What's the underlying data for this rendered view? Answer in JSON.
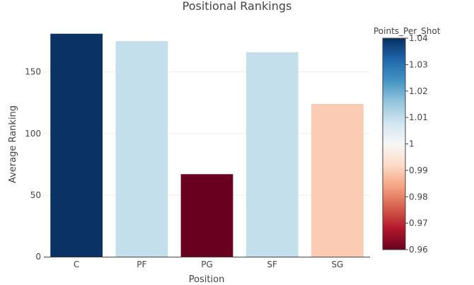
{
  "chart_data": {
    "type": "bar",
    "title": "Positional Rankings",
    "xlabel": "Position",
    "ylabel": "Average Ranking",
    "categories": [
      "C",
      "PF",
      "PG",
      "SF",
      "SG"
    ],
    "values": [
      181,
      175,
      67,
      166,
      124
    ],
    "ylim": [
      0,
      190
    ],
    "yticks": [
      0,
      50,
      100,
      150
    ],
    "grid": true,
    "colorbar": {
      "title": "Points_Per_Shot",
      "range": [
        0.96,
        1.04
      ],
      "ticks": [
        "0.96",
        "0.97",
        "0.98",
        "0.99",
        "1",
        "1.01",
        "1.02",
        "1.03",
        "1.04"
      ],
      "colorscale": [
        "#67001f",
        "#b2182b",
        "#d6604d",
        "#f4a582",
        "#fddbc7",
        "#f7f7f7",
        "#d1e5f0",
        "#92c5de",
        "#4393c3",
        "#2166ac",
        "#053061"
      ]
    },
    "bar_colors": [
      "#0a3264",
      "#c3dfec",
      "#6a0020",
      "#c3dfec",
      "#fbcbb3"
    ]
  }
}
